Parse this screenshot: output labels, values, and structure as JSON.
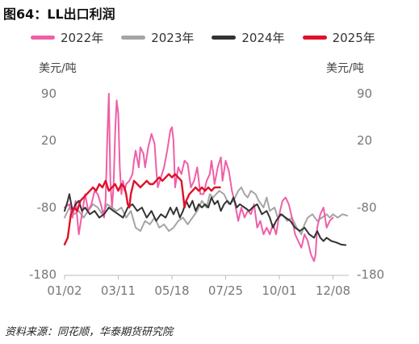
{
  "title": "图64：LL出口利润",
  "source": "资料来源：同花顺，华泰期货研究院",
  "chart_data": {
    "type": "line",
    "ylabel_left": "美元/吨",
    "ylabel_right": "美元/吨",
    "ylim": [
      -180,
      90
    ],
    "yticks": [
      90,
      20,
      -80,
      -180
    ],
    "xticks": [
      {
        "label": "01/02",
        "day": 2
      },
      {
        "label": "03/11",
        "day": 70
      },
      {
        "label": "05/18",
        "day": 138
      },
      {
        "label": "07/25",
        "day": 206
      },
      {
        "label": "10/01",
        "day": 274
      },
      {
        "label": "12/08",
        "day": 342
      }
    ],
    "x_domain": [
      2,
      362
    ],
    "legend_position": "top",
    "series": [
      {
        "name": "2022年",
        "color": "#ef5fa7",
        "points": [
          [
            2,
            -80
          ],
          [
            8,
            -75
          ],
          [
            12,
            -95
          ],
          [
            16,
            -70
          ],
          [
            20,
            -120
          ],
          [
            24,
            -90
          ],
          [
            28,
            -60
          ],
          [
            32,
            -85
          ],
          [
            36,
            -75
          ],
          [
            40,
            -55
          ],
          [
            44,
            -60
          ],
          [
            48,
            -75
          ],
          [
            52,
            -95
          ],
          [
            54,
            -70
          ],
          [
            56,
            20
          ],
          [
            58,
            90
          ],
          [
            60,
            -40
          ],
          [
            62,
            -80
          ],
          [
            64,
            -50
          ],
          [
            66,
            30
          ],
          [
            68,
            80
          ],
          [
            70,
            60
          ],
          [
            72,
            -20
          ],
          [
            74,
            -60
          ],
          [
            76,
            -40
          ],
          [
            78,
            -55
          ],
          [
            80,
            -45
          ],
          [
            84,
            -40
          ],
          [
            88,
            -30
          ],
          [
            90,
            -10
          ],
          [
            92,
            5
          ],
          [
            96,
            -20
          ],
          [
            98,
            10
          ],
          [
            102,
            0
          ],
          [
            104,
            -20
          ],
          [
            108,
            10
          ],
          [
            112,
            30
          ],
          [
            116,
            15
          ],
          [
            118,
            -20
          ],
          [
            120,
            -50
          ],
          [
            124,
            -35
          ],
          [
            128,
            -20
          ],
          [
            132,
            5
          ],
          [
            136,
            35
          ],
          [
            138,
            40
          ],
          [
            140,
            20
          ],
          [
            142,
            -50
          ],
          [
            146,
            -20
          ],
          [
            150,
            -30
          ],
          [
            154,
            -10
          ],
          [
            158,
            -15
          ],
          [
            162,
            -50
          ],
          [
            166,
            -40
          ],
          [
            170,
            -20
          ],
          [
            174,
            -60
          ],
          [
            178,
            -60
          ],
          [
            182,
            -40
          ],
          [
            186,
            -30
          ],
          [
            188,
            -10
          ],
          [
            190,
            -25
          ],
          [
            192,
            -45
          ],
          [
            196,
            -20
          ],
          [
            200,
            -5
          ],
          [
            202,
            -40
          ],
          [
            206,
            -10
          ],
          [
            210,
            -25
          ],
          [
            214,
            -55
          ],
          [
            218,
            -75
          ],
          [
            222,
            -100
          ],
          [
            226,
            -80
          ],
          [
            230,
            -95
          ],
          [
            234,
            -85
          ],
          [
            238,
            -90
          ],
          [
            242,
            -75
          ],
          [
            246,
            -110
          ],
          [
            250,
            -100
          ],
          [
            254,
            -120
          ],
          [
            258,
            -110
          ],
          [
            262,
            -120
          ],
          [
            266,
            -105
          ],
          [
            270,
            -120
          ],
          [
            274,
            -90
          ],
          [
            278,
            -70
          ],
          [
            282,
            -65
          ],
          [
            286,
            -75
          ],
          [
            290,
            -95
          ],
          [
            294,
            -120
          ],
          [
            298,
            -130
          ],
          [
            302,
            -140
          ],
          [
            306,
            -120
          ],
          [
            310,
            -130
          ],
          [
            314,
            -150
          ],
          [
            318,
            -160
          ],
          [
            320,
            -150
          ],
          [
            322,
            -110
          ],
          [
            326,
            -90
          ],
          [
            330,
            -80
          ],
          [
            334,
            -110
          ],
          [
            338,
            -100
          ],
          [
            342,
            -95
          ]
        ]
      },
      {
        "name": "2023年",
        "color": "#a5a5a5",
        "points": [
          [
            2,
            -95
          ],
          [
            8,
            -80
          ],
          [
            14,
            -90
          ],
          [
            20,
            -85
          ],
          [
            26,
            -95
          ],
          [
            32,
            -85
          ],
          [
            38,
            -75
          ],
          [
            44,
            -80
          ],
          [
            50,
            -90
          ],
          [
            56,
            -75
          ],
          [
            62,
            -80
          ],
          [
            68,
            -85
          ],
          [
            74,
            -80
          ],
          [
            80,
            -95
          ],
          [
            86,
            -85
          ],
          [
            92,
            -110
          ],
          [
            98,
            -115
          ],
          [
            104,
            -100
          ],
          [
            110,
            -105
          ],
          [
            116,
            -95
          ],
          [
            122,
            -110
          ],
          [
            128,
            -105
          ],
          [
            134,
            -115
          ],
          [
            140,
            -110
          ],
          [
            146,
            -100
          ],
          [
            152,
            -95
          ],
          [
            158,
            -105
          ],
          [
            164,
            -95
          ],
          [
            170,
            -85
          ],
          [
            176,
            -70
          ],
          [
            182,
            -80
          ],
          [
            186,
            -60
          ],
          [
            190,
            -65
          ],
          [
            194,
            -60
          ],
          [
            198,
            -55
          ],
          [
            204,
            -60
          ],
          [
            210,
            -75
          ],
          [
            216,
            -70
          ],
          [
            222,
            -55
          ],
          [
            226,
            -50
          ],
          [
            230,
            -60
          ],
          [
            234,
            -65
          ],
          [
            238,
            -55
          ],
          [
            244,
            -60
          ],
          [
            248,
            -70
          ],
          [
            254,
            -80
          ],
          [
            258,
            -65
          ],
          [
            262,
            -85
          ],
          [
            268,
            -80
          ],
          [
            272,
            -95
          ],
          [
            278,
            -90
          ],
          [
            284,
            -100
          ],
          [
            290,
            -95
          ],
          [
            296,
            -110
          ],
          [
            302,
            -120
          ],
          [
            306,
            -105
          ],
          [
            310,
            -95
          ],
          [
            316,
            -90
          ],
          [
            322,
            -100
          ],
          [
            328,
            -95
          ],
          [
            334,
            -90
          ],
          [
            338,
            -95
          ],
          [
            342,
            -90
          ],
          [
            348,
            -95
          ],
          [
            354,
            -90
          ],
          [
            360,
            -92
          ]
        ]
      },
      {
        "name": "2024年",
        "color": "#333333",
        "points": [
          [
            2,
            -85
          ],
          [
            6,
            -70
          ],
          [
            8,
            -60
          ],
          [
            12,
            -85
          ],
          [
            16,
            -75
          ],
          [
            20,
            -70
          ],
          [
            24,
            -85
          ],
          [
            28,
            -80
          ],
          [
            34,
            -90
          ],
          [
            40,
            -85
          ],
          [
            46,
            -95
          ],
          [
            52,
            -90
          ],
          [
            58,
            -80
          ],
          [
            64,
            -85
          ],
          [
            70,
            -90
          ],
          [
            76,
            -95
          ],
          [
            82,
            -80
          ],
          [
            88,
            -75
          ],
          [
            94,
            -85
          ],
          [
            100,
            -80
          ],
          [
            106,
            -95
          ],
          [
            112,
            -85
          ],
          [
            118,
            -100
          ],
          [
            124,
            -90
          ],
          [
            130,
            -95
          ],
          [
            136,
            -80
          ],
          [
            140,
            -90
          ],
          [
            144,
            -80
          ],
          [
            148,
            -95
          ],
          [
            152,
            -85
          ],
          [
            156,
            -70
          ],
          [
            160,
            -80
          ],
          [
            164,
            -70
          ],
          [
            168,
            -85
          ],
          [
            172,
            -75
          ],
          [
            176,
            -80
          ],
          [
            180,
            -75
          ],
          [
            184,
            -80
          ],
          [
            188,
            -65
          ],
          [
            192,
            -75
          ],
          [
            196,
            -70
          ],
          [
            200,
            -85
          ],
          [
            204,
            -75
          ],
          [
            208,
            -70
          ],
          [
            212,
            -75
          ],
          [
            216,
            -65
          ],
          [
            220,
            -80
          ],
          [
            224,
            -75
          ],
          [
            230,
            -80
          ],
          [
            236,
            -85
          ],
          [
            240,
            -80
          ],
          [
            246,
            -75
          ],
          [
            252,
            -90
          ],
          [
            258,
            -85
          ],
          [
            262,
            -95
          ],
          [
            266,
            -110
          ],
          [
            270,
            -100
          ],
          [
            276,
            -90
          ],
          [
            282,
            -95
          ],
          [
            288,
            -100
          ],
          [
            294,
            -110
          ],
          [
            300,
            -115
          ],
          [
            306,
            -110
          ],
          [
            312,
            -120
          ],
          [
            318,
            -125
          ],
          [
            322,
            -115
          ],
          [
            326,
            -125
          ],
          [
            330,
            -130
          ],
          [
            334,
            -125
          ],
          [
            340,
            -130
          ],
          [
            346,
            -132
          ],
          [
            352,
            -135
          ],
          [
            358,
            -136
          ]
        ]
      },
      {
        "name": "2025年",
        "color": "#e0102a",
        "points": [
          [
            2,
            -135
          ],
          [
            6,
            -125
          ],
          [
            10,
            -90
          ],
          [
            14,
            -80
          ],
          [
            18,
            -85
          ],
          [
            22,
            -70
          ],
          [
            26,
            -65
          ],
          [
            30,
            -60
          ],
          [
            34,
            -55
          ],
          [
            38,
            -50
          ],
          [
            42,
            -55
          ],
          [
            46,
            -45
          ],
          [
            50,
            -50
          ],
          [
            54,
            -40
          ],
          [
            58,
            -55
          ],
          [
            62,
            -50
          ],
          [
            66,
            -45
          ],
          [
            70,
            -55
          ],
          [
            74,
            -45
          ],
          [
            78,
            -50
          ],
          [
            80,
            -60
          ],
          [
            82,
            -75
          ],
          [
            84,
            -80
          ],
          [
            86,
            -60
          ],
          [
            90,
            -40
          ],
          [
            94,
            -45
          ],
          [
            98,
            -50
          ],
          [
            102,
            -45
          ],
          [
            106,
            -40
          ],
          [
            110,
            -45
          ],
          [
            114,
            -45
          ],
          [
            118,
            -40
          ],
          [
            122,
            -35
          ],
          [
            126,
            -40
          ],
          [
            130,
            -35
          ],
          [
            134,
            -30
          ],
          [
            138,
            -35
          ],
          [
            142,
            -30
          ],
          [
            146,
            -35
          ],
          [
            150,
            -40
          ],
          [
            152,
            -60
          ],
          [
            154,
            -80
          ],
          [
            156,
            -70
          ],
          [
            160,
            -60
          ],
          [
            164,
            -55
          ],
          [
            168,
            -50
          ],
          [
            172,
            -55
          ],
          [
            176,
            -50
          ],
          [
            180,
            -55
          ],
          [
            184,
            -50
          ],
          [
            188,
            -55
          ],
          [
            192,
            -50
          ],
          [
            196,
            -50
          ],
          [
            199,
            -50
          ]
        ]
      }
    ]
  }
}
